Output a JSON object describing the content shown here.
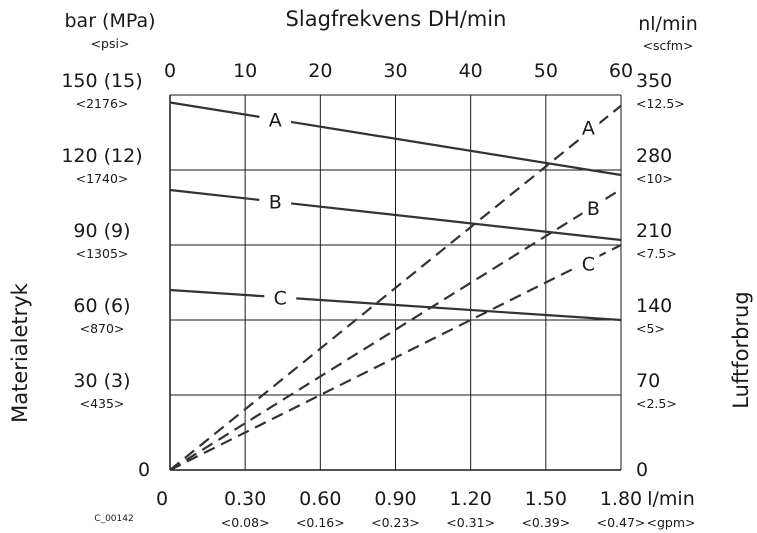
{
  "chart_data": {
    "type": "line",
    "title": "Slagfrekvens DH/min",
    "code": "C_00142",
    "left_axis": {
      "title": "Materialetryk",
      "unit": "bar (MPa)",
      "unit_sub": "<psi>",
      "range": [
        0,
        150
      ],
      "ticks": [
        {
          "value": 0,
          "label": "0",
          "sub": ""
        },
        {
          "value": 30,
          "label": "30 (3)",
          "sub": "<435>"
        },
        {
          "value": 60,
          "label": "60 (6)",
          "sub": "<870>"
        },
        {
          "value": 90,
          "label": "90 (9)",
          "sub": "<1305>"
        },
        {
          "value": 120,
          "label": "120 (12)",
          "sub": "<1740>"
        },
        {
          "value": 150,
          "label": "150 (15)",
          "sub": "<2176>"
        }
      ]
    },
    "right_axis": {
      "title": "Luftforbrug",
      "unit": "nl/min",
      "unit_sub": "<scfm>",
      "range": [
        0,
        350
      ],
      "ticks": [
        {
          "value": 0,
          "label": "0",
          "sub": ""
        },
        {
          "value": 70,
          "label": "70",
          "sub": "<2.5>"
        },
        {
          "value": 140,
          "label": "140",
          "sub": "<5>"
        },
        {
          "value": 210,
          "label": "210",
          "sub": "<7.5>"
        },
        {
          "value": 280,
          "label": "280",
          "sub": "<10>"
        },
        {
          "value": 350,
          "label": "350",
          "sub": "<12.5>"
        }
      ]
    },
    "top_axis": {
      "range": [
        0,
        60
      ],
      "ticks": [
        "0",
        "10",
        "20",
        "30",
        "40",
        "50",
        "60"
      ]
    },
    "bottom_axis": {
      "unit": "l/min",
      "unit_sub": "<gpm>",
      "range": [
        0,
        1.8
      ],
      "ticks": [
        {
          "value": 0,
          "label": "0",
          "sub": ""
        },
        {
          "value": 0.3,
          "label": "0.30",
          "sub": "<0.08>"
        },
        {
          "value": 0.6,
          "label": "0.60",
          "sub": "<0.16>"
        },
        {
          "value": 0.9,
          "label": "0.90",
          "sub": "<0.23>"
        },
        {
          "value": 1.2,
          "label": "1.20",
          "sub": "<0.31>"
        },
        {
          "value": 1.5,
          "label": "1.50",
          "sub": "<0.39>"
        },
        {
          "value": 1.8,
          "label": "1.80",
          "sub": "<0.47>"
        }
      ]
    },
    "pressure_series": [
      {
        "name": "A",
        "x": [
          0,
          1.8
        ],
        "y": [
          147,
          118
        ],
        "label_at": 0.42
      },
      {
        "name": "B",
        "x": [
          0,
          1.8
        ],
        "y": [
          112,
          92
        ],
        "label_at": 0.42
      },
      {
        "name": "C",
        "x": [
          0,
          1.8
        ],
        "y": [
          72,
          60
        ],
        "label_at": 0.44
      }
    ],
    "air_series": [
      {
        "name": "A",
        "x": [
          0,
          1.8
        ],
        "y": [
          0,
          340
        ],
        "label_at": [
          1.67,
          316
        ]
      },
      {
        "name": "B",
        "x": [
          0,
          1.8
        ],
        "y": [
          0,
          262
        ],
        "label_at": [
          1.69,
          241
        ]
      },
      {
        "name": "C",
        "x": [
          0,
          1.8
        ],
        "y": [
          0,
          210
        ],
        "label_at": [
          1.67,
          189
        ]
      }
    ]
  }
}
